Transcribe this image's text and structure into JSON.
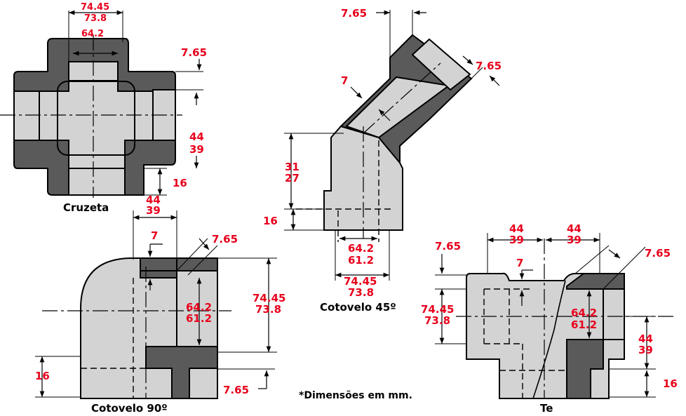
{
  "cruzeta": {
    "title": "Cruzeta",
    "dim_top_outer_a": "74.45",
    "dim_top_outer_b": "73.8",
    "dim_top_inner": "64.2",
    "dim_wall": "7.65",
    "dim_side_a": "44",
    "dim_side_b": "39",
    "dim_bottom": "16"
  },
  "cotovelo90": {
    "title": "Cotovelo 90º",
    "dim_top_a": "44",
    "dim_top_b": "39",
    "dim_thick": "7",
    "dim_wall_top": "7.65",
    "dim_inner_a": "64.2",
    "dim_inner_b": "61.2",
    "dim_outer_a": "74.45",
    "dim_outer_b": "73.8",
    "dim_left": "16",
    "dim_wall_bottom": "7.65"
  },
  "cotovelo45": {
    "title": "Cotovelo 45º",
    "dim_wall_top": "7.65",
    "dim_wall_side": "7.65",
    "dim_thick": "7",
    "dim_height_a": "31",
    "dim_height_b": "27",
    "dim_bottom": "16",
    "dim_inner_a": "64.2",
    "dim_inner_b": "61.2",
    "dim_outer_a": "74.45",
    "dim_outer_b": "73.8"
  },
  "te": {
    "title": "Te",
    "dim_top_left_a": "44",
    "dim_top_left_b": "39",
    "dim_top_right_a": "44",
    "dim_top_right_b": "39",
    "dim_wall_left": "7.65",
    "dim_wall_right": "7.65",
    "dim_thick": "7",
    "dim_outer_a": "74.45",
    "dim_outer_b": "73.8",
    "dim_inner_a": "64.2",
    "dim_inner_b": "61.2",
    "dim_right_a": "44",
    "dim_right_b": "39",
    "dim_bottom": "16"
  },
  "note": "*Dimensões em mm.",
  "colors": {
    "dimension": "#e8001c",
    "body_light": "#d3d3d3",
    "body_dark": "#5a5a5a"
  }
}
